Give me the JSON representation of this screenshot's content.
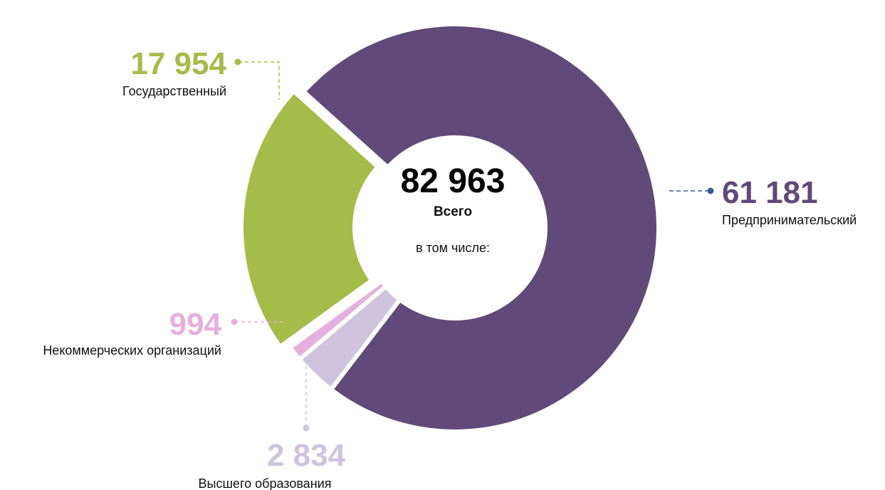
{
  "chart_data": {
    "type": "pie",
    "total": "82 963",
    "total_label": "Всего",
    "subtitle": "в том числе:",
    "slices": [
      {
        "value": 61181,
        "value_text": "61 181",
        "label": "Предпринимательский",
        "color": "#614979"
      },
      {
        "value": 2834,
        "value_text": "2 834",
        "label": "Высшего образования",
        "color": "#cfc3de"
      },
      {
        "value": 994,
        "value_text": "994",
        "label": "Некоммерческих организаций",
        "color": "#e5afdf"
      },
      {
        "value": 17954,
        "value_text": "17 954",
        "label": "Государственный",
        "color": "#a5bb4a"
      }
    ]
  },
  "connector_colors": {
    "entrepreneurial": "#3f5a8f"
  }
}
